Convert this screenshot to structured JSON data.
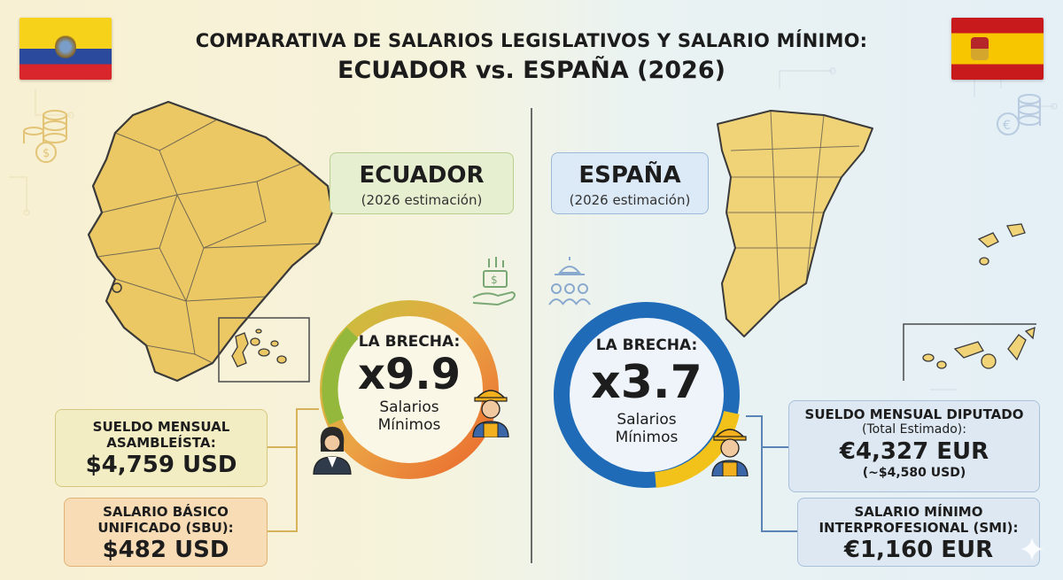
{
  "title": {
    "line1": "COMPARATIVA DE SALARIOS LEGISLATIVOS Y SALARIO MÍNIMO:",
    "line2": "ECUADOR vs. ESPAÑA (2026)"
  },
  "ecuador": {
    "name": "ECUADOR",
    "subtitle": "(2026 estimación)",
    "gap": {
      "label": "LA BRECHA:",
      "value": "x9.9",
      "unit_line1": "Salarios",
      "unit_line2": "Mínimos"
    },
    "legislator": {
      "label_line1": "SUELDO MENSUAL",
      "label_line2": "ASAMBLEÍSTA:",
      "value": "$4,759 USD"
    },
    "minimum": {
      "label_line1": "SALARIO BÁSICO",
      "label_line2": "UNIFICADO (SBU):",
      "value": "$482 USD"
    },
    "colors": {
      "flag_yellow": "#f7d21a",
      "flag_blue": "#2b4a9e",
      "flag_red": "#d9252c",
      "map_fill": "#ecc865"
    }
  },
  "spain": {
    "name": "ESPAÑA",
    "subtitle": "(2026 estimación)",
    "gap": {
      "label": "LA BRECHA:",
      "value": "x3.7",
      "unit_line1": "Salarios",
      "unit_line2": "Mínimos"
    },
    "legislator": {
      "label": "SUELDO MENSUAL DIPUTADO",
      "sublabel": "(Total Estimado):",
      "value": "€4,327 EUR",
      "note": "(~$4,580 USD)"
    },
    "minimum": {
      "label_line1": "SALARIO MÍNIMO",
      "label_line2": "INTERPROFESIONAL (SMI):",
      "value": "€1,160 EUR"
    },
    "colors": {
      "flag_red": "#c8191d",
      "flag_yellow": "#f7c600",
      "ring_blue": "#1f6bb8",
      "ring_yellow": "#f2c21a"
    }
  },
  "icons": [
    "coins-icon",
    "money-hand-icon",
    "parliament-icon",
    "worker-icon",
    "legislator-icon",
    "sparkle-icon"
  ]
}
